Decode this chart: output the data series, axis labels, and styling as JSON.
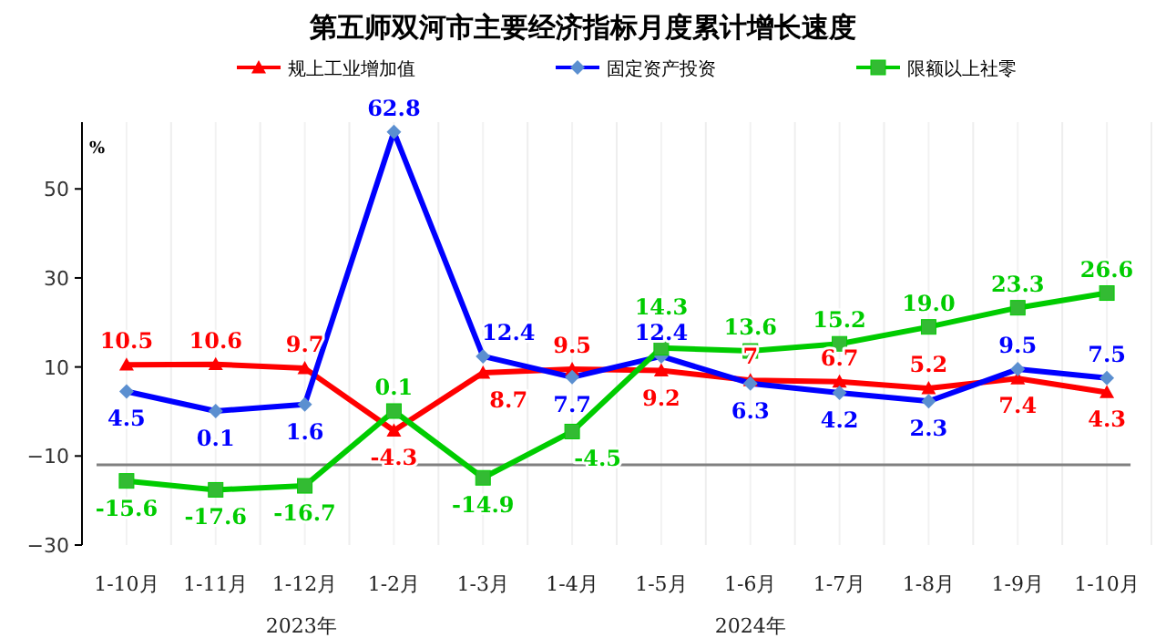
{
  "chart_data": {
    "type": "line",
    "title": "第五师双河市主要经济指标月度累计增长速度",
    "ylabel": "%",
    "categories": [
      "1-10月",
      "1-11月",
      "1-12月",
      "1-2月",
      "1-3月",
      "1-4月",
      "1-5月",
      "1-6月",
      "1-7月",
      "1-8月",
      "1-9月",
      "1-10月"
    ],
    "series": [
      {
        "name": "规上工业增加值",
        "color": "#ff0000",
        "marker": "triangle",
        "values": [
          10.5,
          10.6,
          9.7,
          -4.3,
          8.7,
          9.5,
          9.2,
          7,
          6.7,
          5.2,
          7.4,
          4.3
        ],
        "value_labels": [
          "10.5",
          "10.6",
          "9.7",
          "-4.3",
          "8.7",
          "9.5",
          "9.2",
          "7",
          "6.7",
          "5.2",
          "7.4",
          "4.3"
        ]
      },
      {
        "name": "固定资产投资",
        "color": "#0000ff",
        "marker": "diamond",
        "values": [
          4.5,
          0.1,
          1.6,
          62.8,
          12.4,
          7.7,
          12.4,
          6.3,
          4.2,
          2.3,
          9.5,
          7.5
        ],
        "value_labels": [
          "4.5",
          "0.1",
          "1.6",
          "62.8",
          "12.4",
          "7.7",
          "12.4",
          "6.3",
          "4.2",
          "2.3",
          "9.5",
          "7.5"
        ]
      },
      {
        "name": "限额以上社零",
        "color": "#00cc00",
        "marker": "square",
        "values": [
          -15.6,
          -17.6,
          -16.7,
          0.1,
          -14.9,
          -4.5,
          14.3,
          13.6,
          15.2,
          19.0,
          23.3,
          26.6
        ],
        "value_labels": [
          "-15.6",
          "-17.6",
          "-16.7",
          "0.1",
          "-14.9",
          "-4.5",
          "14.3",
          "13.6",
          "15.2",
          "19.0",
          "23.3",
          "26.6"
        ]
      }
    ],
    "ylim": [
      -30,
      65
    ],
    "yticks": [
      -30,
      -10,
      10,
      30,
      50
    ],
    "grid": "x",
    "legend": "top",
    "ref_lines": [
      {
        "axis": "y",
        "value": -12,
        "color": "#808080"
      }
    ],
    "annotations": [
      "2023年",
      "2024年"
    ]
  }
}
